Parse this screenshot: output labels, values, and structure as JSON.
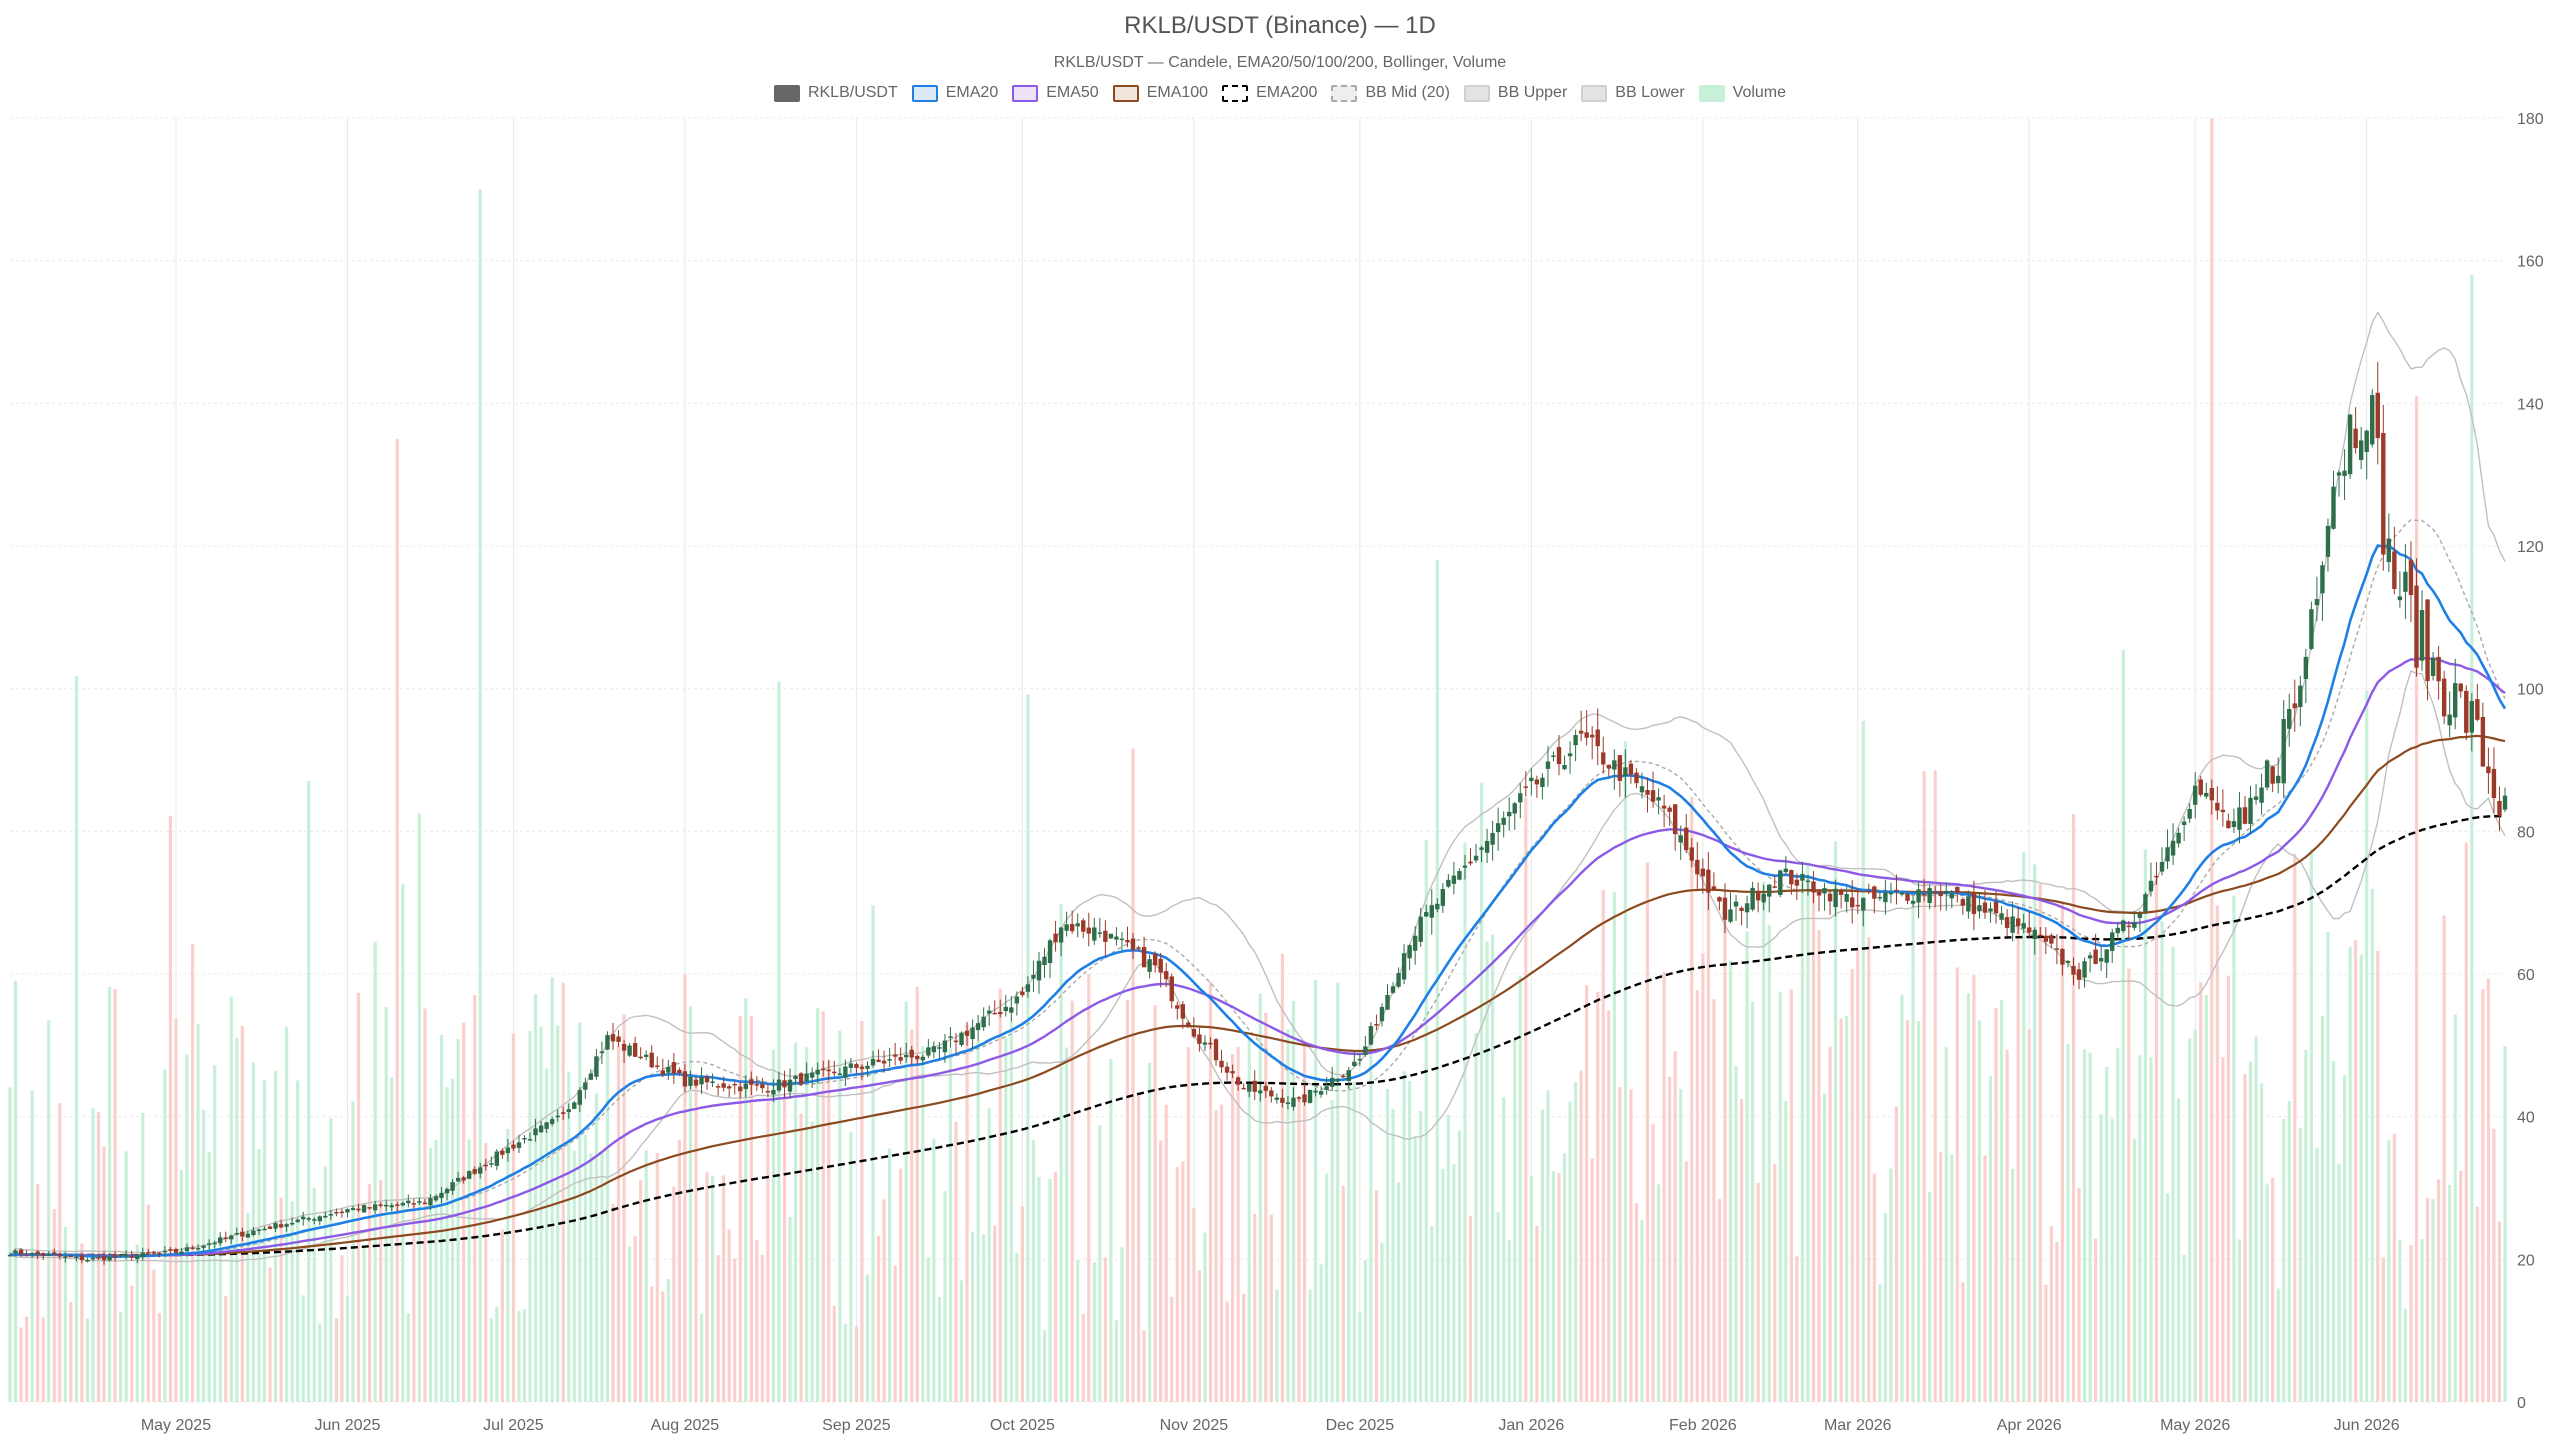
{
  "title": "RKLB/USDT (Binance) — 1D",
  "subtitle": "RKLB/USDT — Candele, EMA20/50/100/200, Bollinger, Volume",
  "legend": [
    {
      "label": "RKLB/USDT",
      "fill": "#666666",
      "border": "#666666",
      "dash": false
    },
    {
      "label": "EMA20",
      "fill": "#dbe9f7",
      "border": "#1e7fe6",
      "dash": false
    },
    {
      "label": "EMA50",
      "fill": "#ece3f8",
      "border": "#8c5ae6",
      "dash": false
    },
    {
      "label": "EMA100",
      "fill": "#f2e6dc",
      "border": "#8b4a1f",
      "dash": false
    },
    {
      "label": "EMA200",
      "fill": "#ffffff",
      "border": "#000000",
      "dash": true
    },
    {
      "label": "BB Mid (20)",
      "fill": "#eeeeee",
      "border": "#aaaaaa",
      "dash": true
    },
    {
      "label": "BB Upper",
      "fill": "#e3e3e3",
      "border": "#d0d0d0",
      "dash": false
    },
    {
      "label": "BB Lower",
      "fill": "#e3e3e3",
      "border": "#d0d0d0",
      "dash": false
    },
    {
      "label": "Volume",
      "fill": "#c8f0d8",
      "border": "#c8f0d8",
      "dash": false
    }
  ],
  "chart_data": {
    "type": "candlestick",
    "x_range": [
      "2025-04-01",
      "2026-06-26"
    ],
    "x_ticks": [
      {
        "label": "May 2025",
        "date": "2025-05-01"
      },
      {
        "label": "Jun 2025",
        "date": "2025-06-01"
      },
      {
        "label": "Jul 2025",
        "date": "2025-07-01"
      },
      {
        "label": "Aug 2025",
        "date": "2025-08-01"
      },
      {
        "label": "Sep 2025",
        "date": "2025-09-01"
      },
      {
        "label": "Oct 2025",
        "date": "2025-10-01"
      },
      {
        "label": "Nov 2025",
        "date": "2025-11-01"
      },
      {
        "label": "Dec 2025",
        "date": "2025-12-01"
      },
      {
        "label": "Jan 2026",
        "date": "2026-01-01"
      },
      {
        "label": "Feb 2026",
        "date": "2026-02-01"
      },
      {
        "label": "Mar 2026",
        "date": "2026-03-01"
      },
      {
        "label": "Apr 2026",
        "date": "2026-04-01"
      },
      {
        "label": "May 2026",
        "date": "2026-05-01"
      },
      {
        "label": "Jun 2026",
        "date": "2026-06-01"
      }
    ],
    "y_axis": {
      "position": "right",
      "min": 0,
      "max": 180,
      "ticks": [
        0,
        20,
        40,
        60,
        80,
        100,
        120,
        140,
        160,
        180
      ]
    },
    "grid": true,
    "legend_position": "top",
    "colors": {
      "up": "#2f6e4a",
      "down": "#9c3a2a",
      "volume_up": "#c8f0d8",
      "volume_down": "#fbd0cc",
      "ema20": "#1e7fe6",
      "ema50": "#8c5ae6",
      "ema100": "#8b4a1f",
      "ema200": "#000000",
      "bb_mid": "#aaaaaa",
      "bb_band": "#c0c0c0"
    },
    "close_anchors": [
      [
        "2025-04-01",
        21
      ],
      [
        "2025-04-15",
        20
      ],
      [
        "2025-05-01",
        21
      ],
      [
        "2025-05-15",
        24
      ],
      [
        "2025-06-01",
        27
      ],
      [
        "2025-06-15",
        28
      ],
      [
        "2025-06-25",
        33
      ],
      [
        "2025-07-01",
        36
      ],
      [
        "2025-07-10",
        40
      ],
      [
        "2025-07-18",
        51
      ],
      [
        "2025-08-01",
        45
      ],
      [
        "2025-08-15",
        44
      ],
      [
        "2025-09-01",
        47
      ],
      [
        "2025-09-15",
        49
      ],
      [
        "2025-10-01",
        57
      ],
      [
        "2025-10-08",
        67
      ],
      [
        "2025-10-15",
        66
      ],
      [
        "2025-10-25",
        61
      ],
      [
        "2025-11-01",
        52
      ],
      [
        "2025-11-10",
        44
      ],
      [
        "2025-11-20",
        42
      ],
      [
        "2025-12-01",
        48
      ],
      [
        "2025-12-10",
        65
      ],
      [
        "2025-12-20",
        75
      ],
      [
        "2026-01-01",
        86
      ],
      [
        "2026-01-10",
        93
      ],
      [
        "2026-01-25",
        83
      ],
      [
        "2026-02-05",
        68
      ],
      [
        "2026-02-15",
        74
      ],
      [
        "2026-03-01",
        70
      ],
      [
        "2026-03-15",
        72
      ],
      [
        "2026-04-01",
        66
      ],
      [
        "2026-04-10",
        60
      ],
      [
        "2026-04-20",
        68
      ],
      [
        "2026-05-01",
        86
      ],
      [
        "2026-05-10",
        79
      ],
      [
        "2026-05-20",
        100
      ],
      [
        "2026-05-25",
        128
      ],
      [
        "2026-06-01",
        143
      ],
      [
        "2026-06-05",
        118
      ],
      [
        "2026-06-12",
        104
      ],
      [
        "2026-06-20",
        95
      ],
      [
        "2026-06-26",
        82
      ]
    ],
    "volume_scale_max": 180,
    "volume_peaks": [
      [
        "2025-06-25",
        170
      ],
      [
        "2025-06-10",
        135
      ],
      [
        "2025-12-15",
        118
      ],
      [
        "2026-05-04",
        180
      ],
      [
        "2026-06-20",
        158
      ],
      [
        "2026-06-10",
        141
      ]
    ]
  }
}
